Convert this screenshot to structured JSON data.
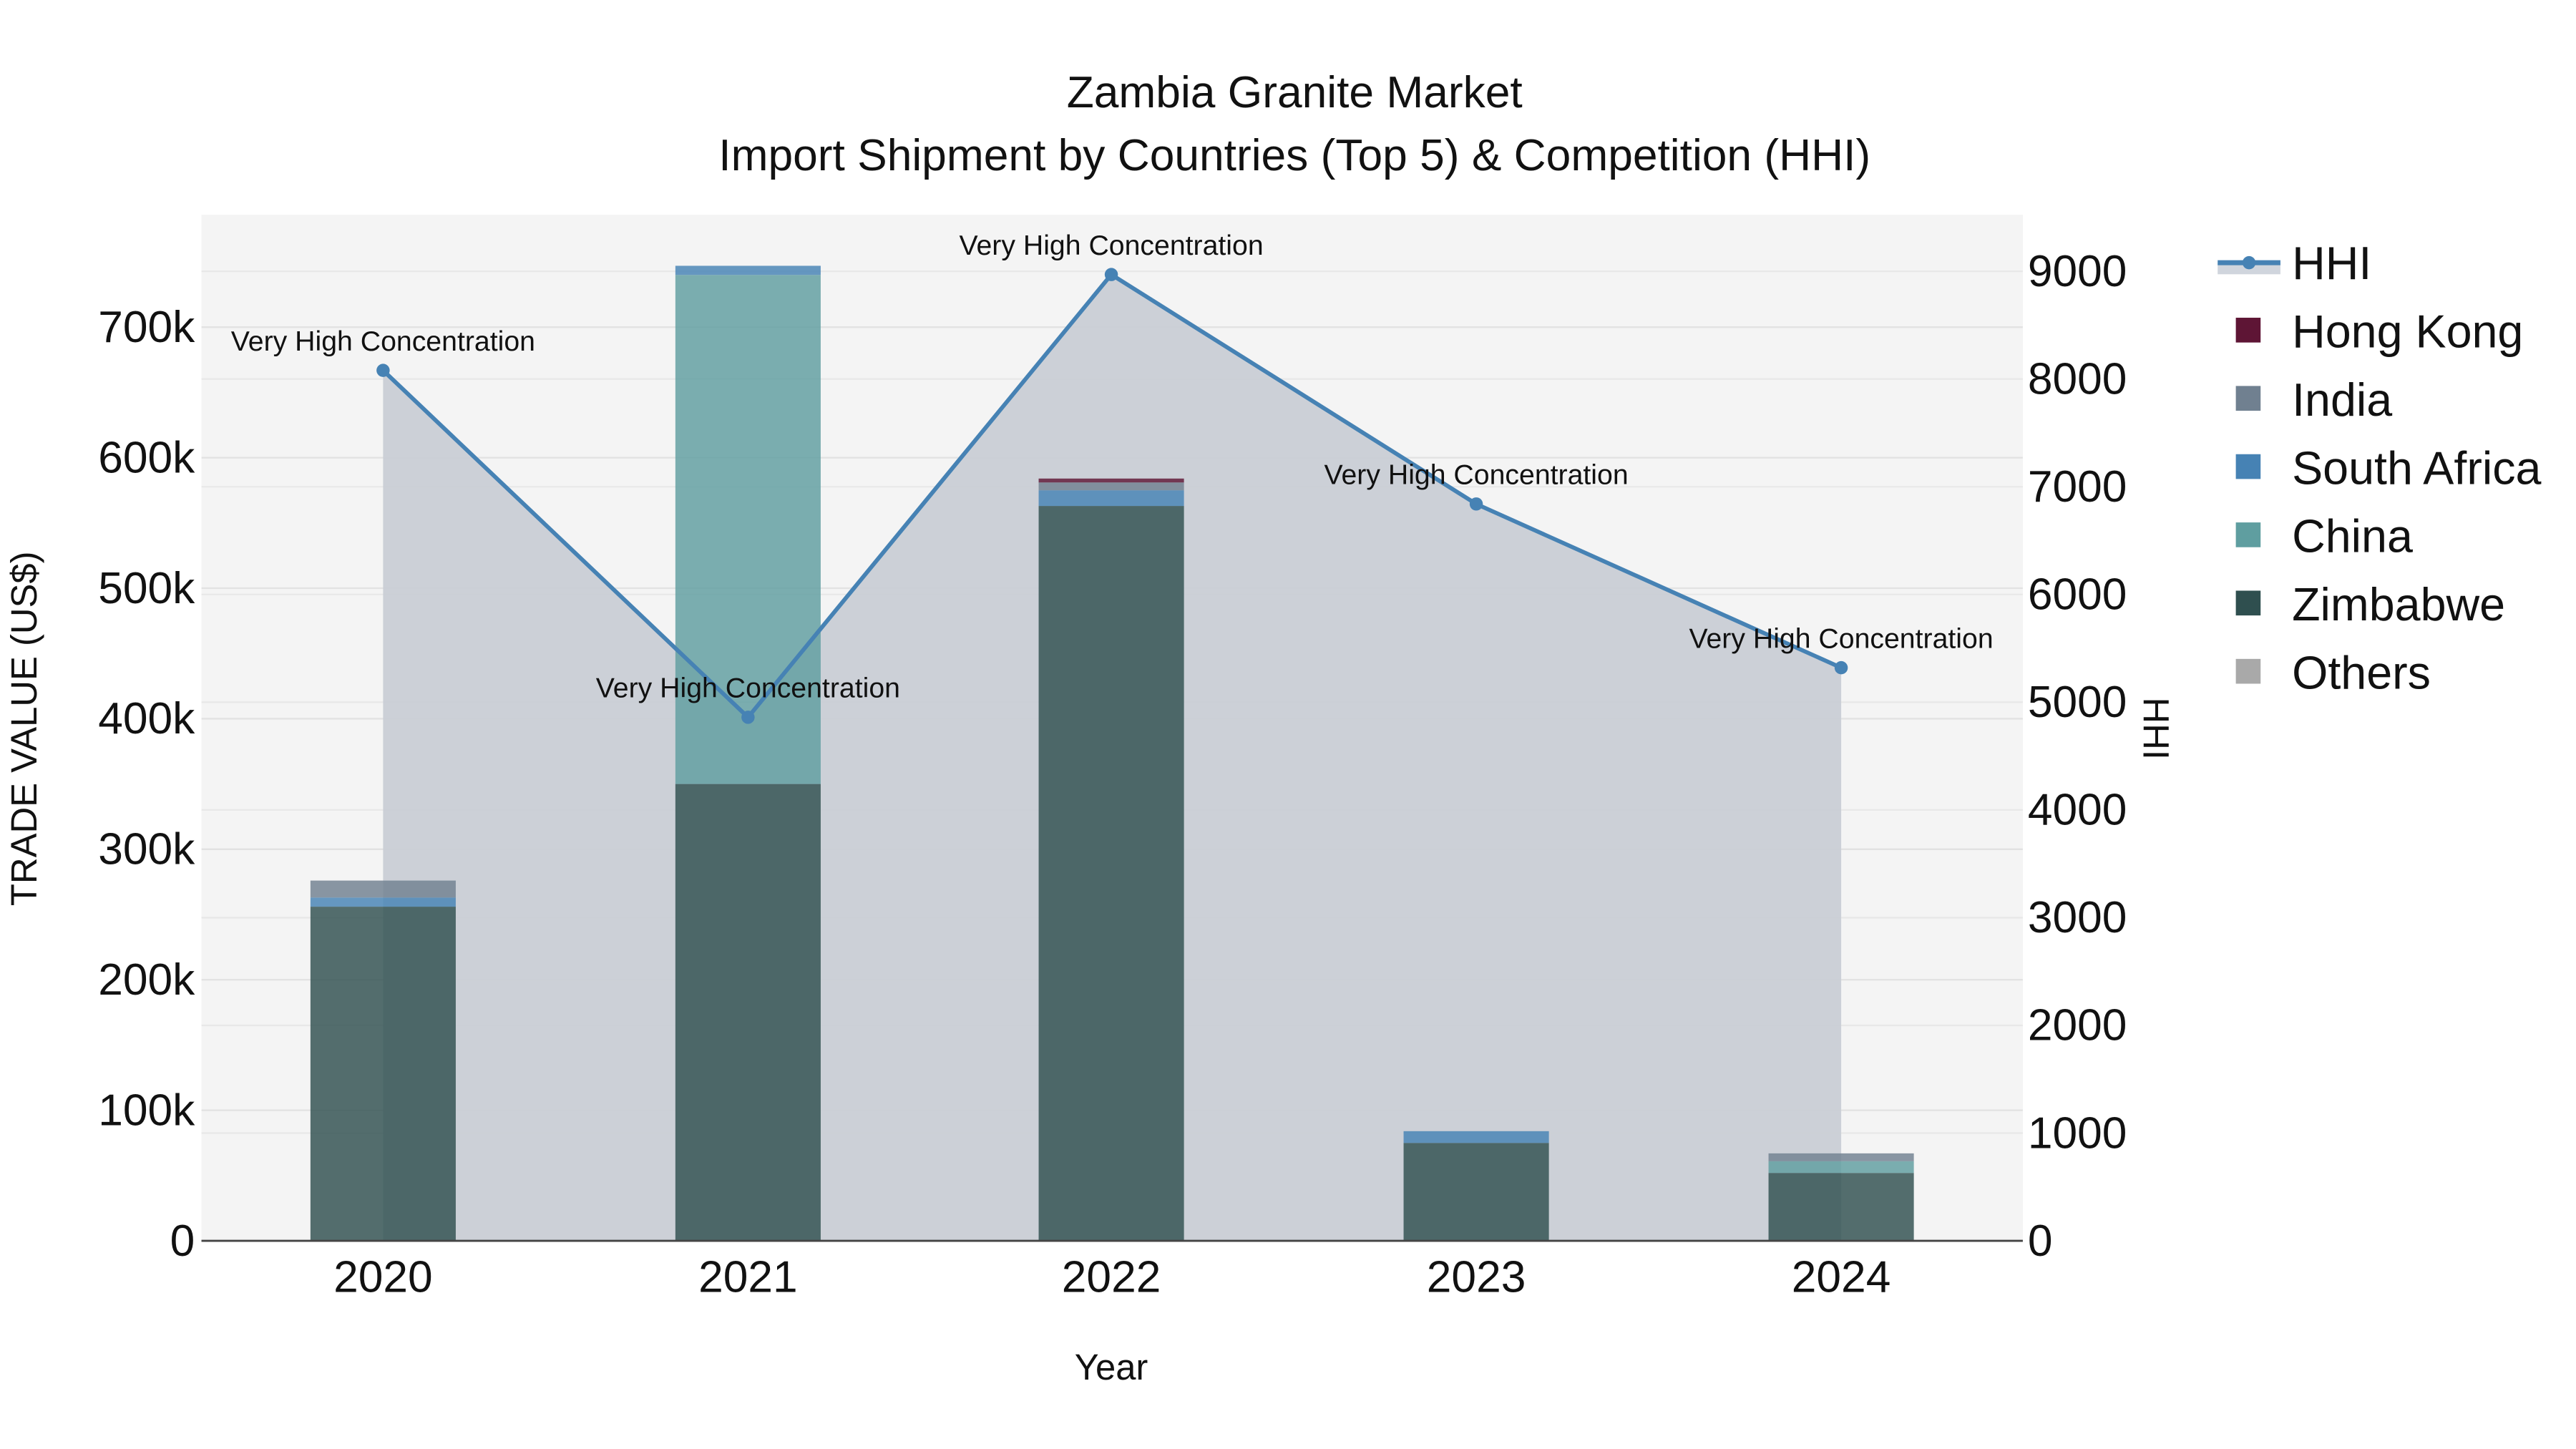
{
  "chart_data": {
    "type": "bar",
    "stacked": true,
    "title": "Zambia Granite Market",
    "subtitle": "Import Shipment by Countries (Top 5) & Competition (HHI)",
    "xlabel": "Year",
    "ylabel": "TRADE VALUE (US$)",
    "y2label": "HHI",
    "categories": [
      "2020",
      "2021",
      "2022",
      "2023",
      "2024"
    ],
    "ylim": [
      0,
      780000
    ],
    "y_ticks": [
      "0",
      "100k",
      "200k",
      "300k",
      "400k",
      "500k",
      "600k",
      "700k"
    ],
    "y2lim": [
      0,
      9500
    ],
    "y2_ticks": [
      "0",
      "1000",
      "2000",
      "3000",
      "4000",
      "5000",
      "6000",
      "7000",
      "8000",
      "9000"
    ],
    "grid": true,
    "legend_position": "right",
    "series": [
      {
        "name": "Zimbabwe",
        "color": "#2f4f4f",
        "values": [
          256000,
          350000,
          563000,
          75000,
          52000
        ]
      },
      {
        "name": "China",
        "color": "#5f9ea0",
        "values": [
          0,
          390000,
          0,
          0,
          9000
        ]
      },
      {
        "name": "South Africa",
        "color": "#4682b4",
        "values": [
          7000,
          7000,
          12000,
          9000,
          0
        ]
      },
      {
        "name": "India",
        "color": "#708090",
        "values": [
          13000,
          0,
          6000,
          0,
          6000
        ]
      },
      {
        "name": "Hong Kong",
        "color": "#5e1535",
        "values": [
          0,
          0,
          3000,
          0,
          0
        ]
      },
      {
        "name": "Others",
        "color": "#a9a9a9",
        "values": [
          0,
          0,
          0,
          0,
          0
        ]
      }
    ],
    "line_series": {
      "name": "HHI",
      "axis": "y2",
      "color": "#4682b4",
      "fill_color": "#c9cdd5",
      "values": [
        8080,
        4860,
        8970,
        6840,
        5320
      ],
      "annotations": [
        "Very High Concentration",
        "Very High Concentration",
        "Very High Concentration",
        "Very High Concentration",
        "Very High Concentration"
      ]
    }
  },
  "legend": {
    "items": [
      {
        "label": "HHI",
        "color": "#4682b4",
        "kind": "line"
      },
      {
        "label": "Hong Kong",
        "color": "#5e1535",
        "kind": "box"
      },
      {
        "label": "India",
        "color": "#708090",
        "kind": "box"
      },
      {
        "label": "South Africa",
        "color": "#4682b4",
        "kind": "box"
      },
      {
        "label": "China",
        "color": "#5f9ea0",
        "kind": "box"
      },
      {
        "label": "Zimbabwe",
        "color": "#2f4f4f",
        "kind": "box"
      },
      {
        "label": "Others",
        "color": "#a9a9a9",
        "kind": "box"
      }
    ]
  }
}
